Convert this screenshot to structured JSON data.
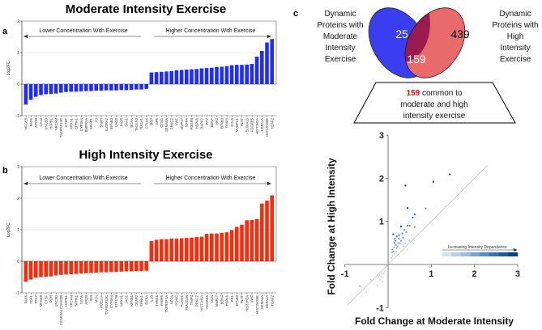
{
  "chart_data": [
    {
      "type": "bar",
      "panel": "a",
      "title": "Moderate Intensity Exercise",
      "ylabel": "Log2FC",
      "ylim": [
        -1,
        2
      ],
      "yticks": [
        "-1",
        "0",
        "1",
        "2"
      ],
      "annotations": {
        "left": "Lower Concentration With Exercise",
        "right": "Higher Concentration With Exercise"
      },
      "color": "#1f2cff",
      "categories": [
        "MFGE8",
        "PAX6",
        "APOB",
        "CA13",
        "UNC5D",
        "HSPB1",
        "NRCAM",
        "TNFRSF13C",
        "CTSF",
        "NRXN1",
        "EPHA1",
        "CYP3A4",
        "BMPR1A",
        "ERAP1",
        "F3",
        "SNPH",
        "IL22RA2",
        "EFNB3",
        "LAG3",
        "PIGR",
        "SAA1",
        "BCAN",
        "TAGLN2",
        "RASA1",
        "CTLA4",
        "IBSP",
        "GP6",
        "CTSG",
        "SEMA5A",
        "PRKCZ",
        "VWF",
        "MMP17",
        "NPPA",
        "PDGFB",
        "HSPA6",
        "DAPK2",
        "PPY",
        "BDNF",
        "HK2",
        "EFNB3",
        "TIMP3",
        "CCL5",
        "MYBPC1",
        "PLAT",
        "S100A13",
        "ADGRE5",
        "HIST3H2A",
        "HSPA1A",
        "HIST2H2BE",
        "H2AFZ"
      ],
      "values": [
        -0.65,
        -0.5,
        -0.4,
        -0.35,
        -0.32,
        -0.31,
        -0.3,
        -0.27,
        -0.25,
        -0.24,
        -0.24,
        -0.23,
        -0.22,
        -0.22,
        -0.21,
        -0.21,
        -0.2,
        -0.2,
        -0.2,
        -0.19,
        -0.19,
        -0.18,
        -0.17,
        -0.17,
        -0.15,
        0.37,
        0.38,
        0.39,
        0.4,
        0.41,
        0.44,
        0.45,
        0.46,
        0.47,
        0.48,
        0.5,
        0.51,
        0.52,
        0.54,
        0.55,
        0.57,
        0.6,
        0.61,
        0.61,
        0.62,
        0.64,
        0.87,
        1.05,
        1.32,
        1.43
      ]
    },
    {
      "type": "bar",
      "panel": "b",
      "title": "High Intensity Exercise",
      "ylabel": "Log2FC",
      "ylim": [
        -1,
        3
      ],
      "yticks": [
        "-1",
        "0",
        "1",
        "2",
        "3"
      ],
      "annotations": {
        "left": "Lower Concentration With Exercise",
        "right": "Higher Concentration With Exercise"
      },
      "color": "#ff2a0a",
      "categories": [
        "PAX6",
        "TOP1",
        "PTK7",
        "MFGE8",
        "CTSF",
        "POR",
        "UNC5D",
        "CSNK2A1 CSNK2B",
        "HSPB1",
        "NRCAM",
        "SPHK1",
        "SGTA",
        "APOB",
        "IDS",
        "MSN",
        "PDE11A",
        "TNFRSF13C",
        "CYP3A4",
        "STK17B",
        "NRXN1",
        "JAG1",
        "KPNB1",
        "CKAP2",
        "EPHA1",
        "EIF5A",
        "IL1B",
        "THBS1",
        "FABP5",
        "TNFRSF1A",
        "NPPA",
        "POMC",
        "PGAM1",
        "PLA2G1B",
        "TIMP3",
        "PRKCZ",
        "HIST1H3A",
        "ADGRE5",
        "DCN",
        "MMP17",
        "BDNF",
        "HSPA6",
        "PRL",
        "EFNB3",
        "PLAT",
        "HIST3H2A",
        "VWF",
        "HIST2H2BE",
        "SEMA4A",
        "HSPA1A",
        "H2AFZ"
      ],
      "values": [
        -0.65,
        -0.58,
        -0.52,
        -0.5,
        -0.49,
        -0.48,
        -0.45,
        -0.43,
        -0.42,
        -0.41,
        -0.4,
        -0.39,
        -0.38,
        -0.37,
        -0.36,
        -0.35,
        -0.35,
        -0.34,
        -0.34,
        -0.33,
        -0.32,
        -0.32,
        -0.31,
        -0.31,
        -0.3,
        0.64,
        0.68,
        0.7,
        0.7,
        0.72,
        0.72,
        0.73,
        0.74,
        0.75,
        0.77,
        0.78,
        0.87,
        0.88,
        0.88,
        0.9,
        0.92,
        0.99,
        1.09,
        1.16,
        1.3,
        1.31,
        1.34,
        1.83,
        1.92,
        2.09
      ]
    },
    {
      "type": "venn",
      "panel": "c",
      "sets": [
        {
          "label_lines": [
            "Dynamic",
            "Proteins with",
            "Moderate",
            "Intensity",
            "Exercise"
          ],
          "only": "25",
          "color": "#3a3df0"
        },
        {
          "label_lines": [
            "Dynamic",
            "Proteins with",
            "High",
            "Intensity",
            "Exercise"
          ],
          "only": "439",
          "color": "#e86a6a"
        }
      ],
      "intersection": "159",
      "intersection_color": "#9b1b4e",
      "callout": {
        "highlight": "159",
        "highlight_color": "#ff0000",
        "line1_rest": " common to",
        "line2": "moderate and high",
        "line3": "intensity exercise"
      }
    },
    {
      "type": "scatter",
      "xlabel": "Fold Change at Moderate Intensity",
      "ylabel": "Fold Change at High Intensity",
      "xlim": [
        -1,
        3
      ],
      "ylim": [
        -1,
        3
      ],
      "xticks": [
        "-1",
        "1",
        "2",
        "3"
      ],
      "yticks": [
        "-1",
        "1",
        "2",
        "3"
      ],
      "identity_line": true,
      "colorbar_label": "Increasing Intensity Dependence",
      "colorbar_colors": [
        "#d6e2f0",
        "#bccfe6",
        "#9fbadb",
        "#7fa2cd",
        "#5f88bd",
        "#4170ab",
        "#255894",
        "#0c3f7a"
      ],
      "points": [
        [
          1.43,
          2.09
        ],
        [
          1.05,
          1.92
        ],
        [
          0.4,
          1.83
        ],
        [
          0.45,
          1.31
        ],
        [
          0.87,
          1.3
        ],
        [
          1.32,
          1.34
        ],
        [
          0.62,
          1.16
        ],
        [
          0.57,
          1.09
        ],
        [
          0.3,
          0.88
        ],
        [
          0.45,
          0.9
        ],
        [
          0.5,
          0.9
        ],
        [
          0.62,
          0.87
        ],
        [
          0.38,
          0.8
        ],
        [
          0.42,
          0.75
        ],
        [
          0.12,
          0.7
        ],
        [
          0.2,
          0.65
        ],
        [
          0.25,
          0.6
        ],
        [
          0.3,
          0.55
        ],
        [
          0.15,
          0.5
        ],
        [
          0.18,
          0.45
        ],
        [
          0.22,
          0.42
        ],
        [
          0.1,
          0.35
        ],
        [
          0.13,
          0.3
        ],
        [
          0.15,
          0.25
        ],
        [
          0.1,
          0.2
        ],
        [
          0.08,
          0.15
        ],
        [
          0.12,
          0.12
        ],
        [
          0.5,
          0.55
        ],
        [
          0.6,
          0.5
        ],
        [
          0.45,
          0.35
        ],
        [
          0.3,
          0.3
        ],
        [
          0.25,
          0.2
        ],
        [
          0.2,
          0.38
        ],
        [
          0.28,
          0.48
        ],
        [
          0.35,
          0.62
        ],
        [
          0.17,
          0.55
        ],
        [
          0.24,
          0.5
        ],
        [
          0.14,
          0.4
        ],
        [
          0.19,
          0.3
        ],
        [
          0.26,
          0.68
        ],
        [
          0.33,
          0.72
        ],
        [
          0.09,
          0.28
        ],
        [
          0.16,
          0.6
        ],
        [
          0.4,
          0.5
        ],
        [
          0.55,
          0.68
        ],
        [
          0.36,
          0.42
        ],
        [
          -0.65,
          -0.5
        ],
        [
          -0.5,
          -0.65
        ],
        [
          -0.4,
          -0.35
        ],
        [
          -0.25,
          -0.48
        ],
        [
          -0.22,
          -0.3
        ],
        [
          -0.2,
          -0.25
        ],
        [
          -0.15,
          -0.2
        ],
        [
          -0.1,
          -0.18
        ],
        [
          -0.12,
          -0.3
        ],
        [
          -0.18,
          -0.35
        ],
        [
          -0.1,
          -0.1
        ],
        [
          -0.05,
          -0.08
        ],
        [
          -0.08,
          -0.15
        ],
        [
          0.05,
          0.05
        ],
        [
          -0.13,
          -0.4
        ],
        [
          -0.2,
          -0.35
        ],
        [
          -0.15,
          -0.28
        ],
        [
          -0.1,
          -0.22
        ]
      ]
    }
  ]
}
